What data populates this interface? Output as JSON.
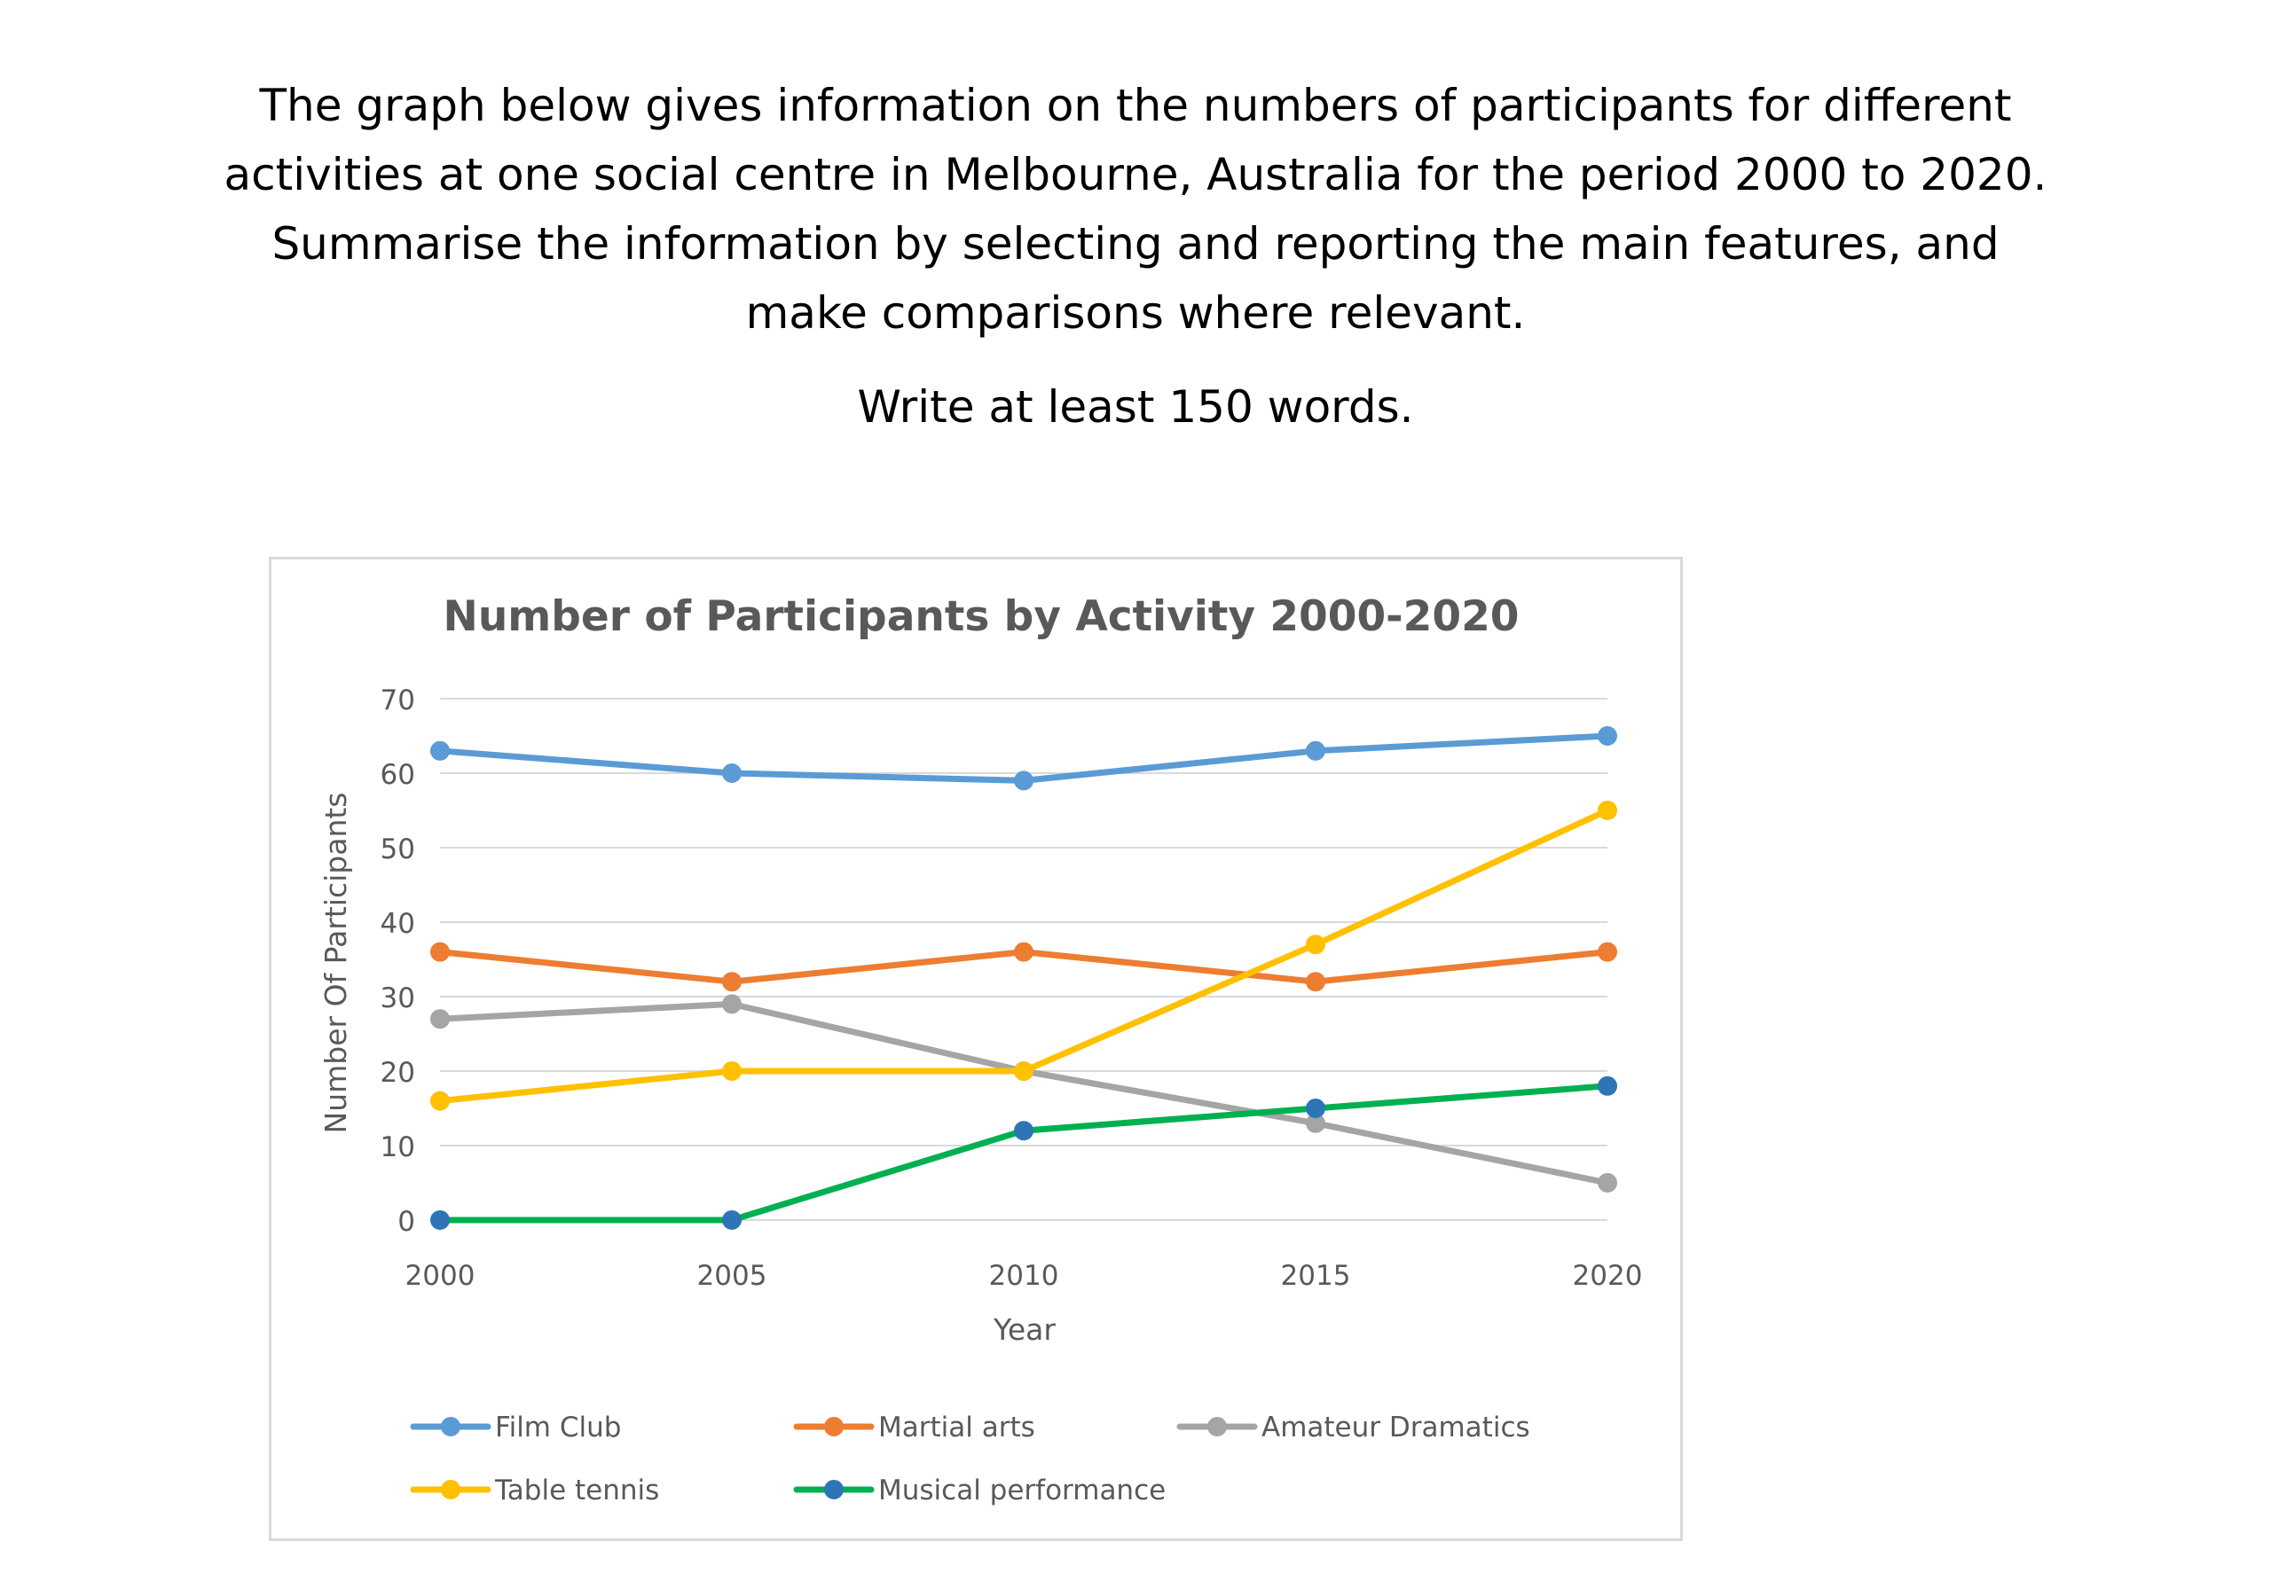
{
  "prompt": {
    "lines": [
      "The graph below gives information on the numbers of participants for different",
      "activities at one social centre in Melbourne, Australia for the period 2000 to 2020.",
      "Summarise the information by selecting and reporting the main features, and",
      "make comparisons where relevant."
    ],
    "word_count": "Write at least 150 words."
  },
  "chart_data": {
    "type": "line",
    "title": "Number of Participants by Activity 2000-2020",
    "xlabel": "Year",
    "ylabel": "Number Of Participants",
    "categories": [
      "2000",
      "2005",
      "2010",
      "2015",
      "2020"
    ],
    "yticks": [
      0,
      10,
      20,
      30,
      40,
      50,
      60,
      70
    ],
    "ylim": [
      0,
      70
    ],
    "grid": true,
    "legend_position": "bottom",
    "series": [
      {
        "name": "Film Club",
        "values": [
          63,
          60,
          59,
          63,
          65
        ],
        "color": "#5b9bd5",
        "marker": "#5b9bd5"
      },
      {
        "name": "Martial arts",
        "values": [
          36,
          32,
          36,
          32,
          36
        ],
        "color": "#ed7d31",
        "marker": "#ed7d31"
      },
      {
        "name": "Amateur Dramatics",
        "values": [
          27,
          29,
          20,
          13,
          5
        ],
        "color": "#a5a5a5",
        "marker": "#a5a5a5"
      },
      {
        "name": "Table tennis",
        "values": [
          16,
          20,
          20,
          37,
          55
        ],
        "color": "#ffc000",
        "marker": "#ffc000"
      },
      {
        "name": "Musical performance",
        "values": [
          0,
          0,
          12,
          15,
          18
        ],
        "color": "#00b050",
        "marker": "#2e75b6"
      }
    ]
  }
}
